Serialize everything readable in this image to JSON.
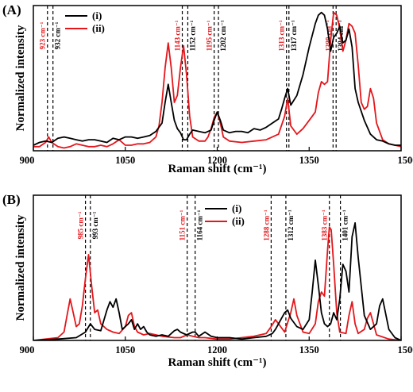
{
  "chart_data": [
    {
      "type": "line",
      "panel_label": "(A)",
      "xlabel": "Raman shift (cm⁻¹)",
      "ylabel": "Normalized intensity",
      "xlim": [
        900,
        1500
      ],
      "xticks": [
        900,
        1050,
        1200,
        1350,
        1500
      ],
      "ylim": [
        0,
        1.05
      ],
      "legend_position": "top-left",
      "series": [
        {
          "name": "(i)",
          "color": "#000000",
          "x": [
            900,
            910,
            920,
            930,
            940,
            950,
            960,
            970,
            980,
            990,
            1000,
            1010,
            1020,
            1030,
            1040,
            1050,
            1060,
            1070,
            1080,
            1090,
            1100,
            1110,
            1115,
            1120,
            1125,
            1130,
            1135,
            1140,
            1145,
            1150,
            1155,
            1160,
            1170,
            1180,
            1190,
            1195,
            1200,
            1205,
            1210,
            1220,
            1230,
            1240,
            1250,
            1260,
            1270,
            1280,
            1290,
            1300,
            1305,
            1310,
            1315,
            1320,
            1330,
            1340,
            1350,
            1360,
            1365,
            1370,
            1375,
            1380,
            1385,
            1390,
            1395,
            1400,
            1405,
            1410,
            1415,
            1420,
            1425,
            1430,
            1440,
            1450,
            1460,
            1470,
            1480,
            1490,
            1500
          ],
          "y": [
            0.04,
            0.06,
            0.07,
            0.06,
            0.09,
            0.1,
            0.09,
            0.08,
            0.07,
            0.08,
            0.08,
            0.07,
            0.06,
            0.09,
            0.08,
            0.1,
            0.1,
            0.09,
            0.1,
            0.11,
            0.14,
            0.2,
            0.35,
            0.48,
            0.35,
            0.22,
            0.16,
            0.13,
            0.08,
            0.08,
            0.12,
            0.15,
            0.14,
            0.13,
            0.15,
            0.22,
            0.28,
            0.22,
            0.15,
            0.13,
            0.14,
            0.14,
            0.13,
            0.16,
            0.15,
            0.17,
            0.2,
            0.23,
            0.3,
            0.38,
            0.45,
            0.33,
            0.4,
            0.55,
            0.75,
            0.92,
            0.98,
            1.0,
            0.98,
            0.88,
            0.72,
            0.82,
            0.85,
            0.9,
            0.78,
            0.8,
            0.88,
            0.75,
            0.45,
            0.35,
            0.22,
            0.12,
            0.08,
            0.07,
            0.05,
            0.04,
            0.04
          ]
        },
        {
          "name": "(ii)",
          "color": "#e4161b",
          "x": [
            900,
            910,
            920,
            925,
            930,
            940,
            950,
            960,
            970,
            980,
            990,
            1000,
            1010,
            1020,
            1030,
            1040,
            1050,
            1060,
            1070,
            1080,
            1090,
            1100,
            1105,
            1110,
            1115,
            1120,
            1125,
            1130,
            1135,
            1140,
            1145,
            1150,
            1155,
            1160,
            1170,
            1180,
            1185,
            1190,
            1195,
            1200,
            1205,
            1210,
            1220,
            1240,
            1260,
            1280,
            1300,
            1310,
            1315,
            1320,
            1330,
            1340,
            1350,
            1360,
            1365,
            1370,
            1375,
            1380,
            1385,
            1390,
            1395,
            1400,
            1405,
            1410,
            1415,
            1420,
            1425,
            1430,
            1435,
            1440,
            1445,
            1450,
            1455,
            1460,
            1470,
            1480,
            1490,
            1500
          ],
          "y": [
            0.03,
            0.03,
            0.06,
            0.1,
            0.06,
            0.03,
            0.02,
            0.03,
            0.05,
            0.04,
            0.03,
            0.03,
            0.04,
            0.03,
            0.05,
            0.08,
            0.04,
            0.04,
            0.05,
            0.05,
            0.06,
            0.1,
            0.18,
            0.35,
            0.6,
            0.78,
            0.6,
            0.35,
            0.4,
            0.6,
            0.76,
            0.55,
            0.25,
            0.1,
            0.07,
            0.07,
            0.1,
            0.16,
            0.24,
            0.28,
            0.2,
            0.1,
            0.07,
            0.06,
            0.07,
            0.08,
            0.12,
            0.25,
            0.38,
            0.18,
            0.12,
            0.16,
            0.22,
            0.28,
            0.42,
            0.5,
            0.48,
            0.5,
            0.8,
            1.0,
            0.98,
            0.88,
            0.72,
            0.8,
            0.92,
            0.9,
            0.85,
            0.62,
            0.35,
            0.3,
            0.32,
            0.45,
            0.38,
            0.2,
            0.08,
            0.05,
            0.04,
            0.03
          ]
        }
      ],
      "annotations": [
        {
          "x": 923,
          "label": "923 cm⁻¹",
          "color": "#e4161b",
          "side": "left"
        },
        {
          "x": 932,
          "label": "932 cm⁻¹",
          "color": "#000000",
          "side": "right"
        },
        {
          "x": 1143,
          "label": "1143 cm⁻¹",
          "color": "#e4161b",
          "side": "left"
        },
        {
          "x": 1152,
          "label": "1152 cm⁻¹",
          "color": "#000000",
          "side": "right"
        },
        {
          "x": 1195,
          "label": "1195 cm⁻¹",
          "color": "#e4161b",
          "side": "left"
        },
        {
          "x": 1202,
          "label": "1202 cm⁻¹",
          "color": "#000000",
          "side": "right"
        },
        {
          "x": 1313,
          "label": "1313 cm⁻¹",
          "color": "#e4161b",
          "side": "left"
        },
        {
          "x": 1317,
          "label": "1317 cm⁻¹",
          "color": "#000000",
          "side": "right"
        },
        {
          "x": 1389,
          "label": "1389 cm⁻¹",
          "color": "#e4161b",
          "side": "left"
        },
        {
          "x": 1394,
          "label": "1394 cm⁻¹",
          "color": "#000000",
          "side": "right"
        }
      ]
    },
    {
      "type": "line",
      "panel_label": "(B)",
      "xlabel": "Raman shift (cm⁻¹)",
      "ylabel": "Normalized intensity",
      "xlim": [
        900,
        1500
      ],
      "xticks": [
        900,
        1050,
        1200,
        1350,
        1500
      ],
      "ylim": [
        0,
        1.05
      ],
      "legend_position": "top-center",
      "series": [
        {
          "name": "(i)",
          "color": "#000000",
          "x": [
            900,
            940,
            970,
            985,
            993,
            1000,
            1010,
            1020,
            1025,
            1030,
            1035,
            1040,
            1045,
            1055,
            1060,
            1065,
            1070,
            1075,
            1080,
            1085,
            1090,
            1100,
            1110,
            1120,
            1130,
            1135,
            1140,
            1150,
            1160,
            1164,
            1170,
            1180,
            1190,
            1200,
            1220,
            1240,
            1260,
            1280,
            1290,
            1295,
            1300,
            1305,
            1310,
            1315,
            1320,
            1330,
            1340,
            1350,
            1355,
            1360,
            1365,
            1370,
            1375,
            1380,
            1385,
            1390,
            1395,
            1400,
            1405,
            1410,
            1415,
            1420,
            1425,
            1430,
            1440,
            1450,
            1460,
            1465,
            1470,
            1480,
            1490,
            1500
          ],
          "y": [
            0.0,
            0.01,
            0.02,
            0.06,
            0.12,
            0.08,
            0.07,
            0.22,
            0.28,
            0.24,
            0.3,
            0.2,
            0.08,
            0.12,
            0.15,
            0.08,
            0.12,
            0.08,
            0.1,
            0.06,
            0.04,
            0.03,
            0.04,
            0.03,
            0.07,
            0.08,
            0.06,
            0.04,
            0.06,
            0.06,
            0.03,
            0.06,
            0.03,
            0.02,
            0.02,
            0.01,
            0.02,
            0.03,
            0.05,
            0.08,
            0.12,
            0.16,
            0.2,
            0.22,
            0.16,
            0.1,
            0.08,
            0.15,
            0.35,
            0.58,
            0.4,
            0.2,
            0.12,
            0.1,
            0.12,
            0.2,
            0.15,
            0.3,
            0.55,
            0.5,
            0.35,
            0.75,
            0.85,
            0.6,
            0.18,
            0.08,
            0.12,
            0.25,
            0.3,
            0.08,
            0.02,
            0.0
          ]
        },
        {
          "name": "(ii)",
          "color": "#e4161b",
          "x": [
            900,
            920,
            940,
            950,
            955,
            960,
            965,
            970,
            975,
            980,
            985,
            990,
            995,
            1000,
            1005,
            1010,
            1020,
            1030,
            1040,
            1050,
            1055,
            1060,
            1065,
            1070,
            1080,
            1090,
            1100,
            1110,
            1130,
            1140,
            1151,
            1160,
            1170,
            1180,
            1200,
            1220,
            1240,
            1260,
            1280,
            1288,
            1295,
            1300,
            1310,
            1320,
            1325,
            1330,
            1340,
            1350,
            1360,
            1365,
            1370,
            1375,
            1380,
            1383,
            1386,
            1390,
            1395,
            1400,
            1410,
            1415,
            1420,
            1425,
            1430,
            1440,
            1445,
            1450,
            1455,
            1460,
            1480,
            1500
          ],
          "y": [
            0.0,
            0.01,
            0.02,
            0.06,
            0.18,
            0.3,
            0.2,
            0.1,
            0.12,
            0.25,
            0.45,
            0.62,
            0.4,
            0.2,
            0.22,
            0.12,
            0.08,
            0.06,
            0.05,
            0.1,
            0.18,
            0.2,
            0.1,
            0.06,
            0.04,
            0.05,
            0.04,
            0.03,
            0.02,
            0.02,
            0.04,
            0.03,
            0.02,
            0.02,
            0.01,
            0.01,
            0.02,
            0.03,
            0.05,
            0.1,
            0.15,
            0.12,
            0.06,
            0.2,
            0.3,
            0.18,
            0.06,
            0.05,
            0.12,
            0.28,
            0.35,
            0.32,
            0.65,
            0.82,
            0.8,
            0.55,
            0.2,
            0.06,
            0.05,
            0.18,
            0.28,
            0.12,
            0.05,
            0.08,
            0.16,
            0.2,
            0.12,
            0.04,
            0.01,
            0.0
          ]
        }
      ],
      "annotations": [
        {
          "x": 985,
          "label": "985 cm⁻¹",
          "color": "#e4161b",
          "side": "left"
        },
        {
          "x": 993,
          "label": "993 cm⁻¹",
          "color": "#000000",
          "side": "right"
        },
        {
          "x": 1151,
          "label": "1151 cm⁻¹",
          "color": "#e4161b",
          "side": "left"
        },
        {
          "x": 1164,
          "label": "1164 cm⁻¹",
          "color": "#000000",
          "side": "right"
        },
        {
          "x": 1288,
          "label": "1288 cm⁻¹",
          "color": "#e4161b",
          "side": "left"
        },
        {
          "x": 1312,
          "label": "1312 cm⁻¹",
          "color": "#000000",
          "side": "right"
        },
        {
          "x": 1383,
          "label": "1383 cm⁻¹",
          "color": "#e4161b",
          "side": "left"
        },
        {
          "x": 1401,
          "label": "1401 cm⁻¹",
          "color": "#000000",
          "side": "right"
        }
      ]
    }
  ]
}
